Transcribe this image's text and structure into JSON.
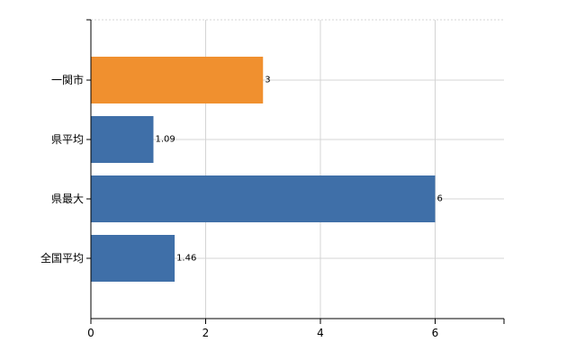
{
  "chart_data": {
    "type": "bar",
    "orientation": "horizontal",
    "title": "",
    "xlabel": "",
    "ylabel": "",
    "categories": [
      "一関市",
      "県平均",
      "県最大",
      "全国平均"
    ],
    "values": [
      3,
      1.09,
      6,
      1.46
    ],
    "data_labels": [
      "3",
      "1.09",
      "6",
      "1.46"
    ],
    "highlight_index": 0,
    "colors": {
      "highlight": "#f0902f",
      "default": "#3f6fa8"
    },
    "xlim": [
      0,
      7.2
    ],
    "xticks": [
      0,
      2,
      4,
      6
    ],
    "xtick_labels": [
      "0",
      "2",
      "4",
      "6"
    ],
    "grid": true,
    "legend": "none"
  }
}
